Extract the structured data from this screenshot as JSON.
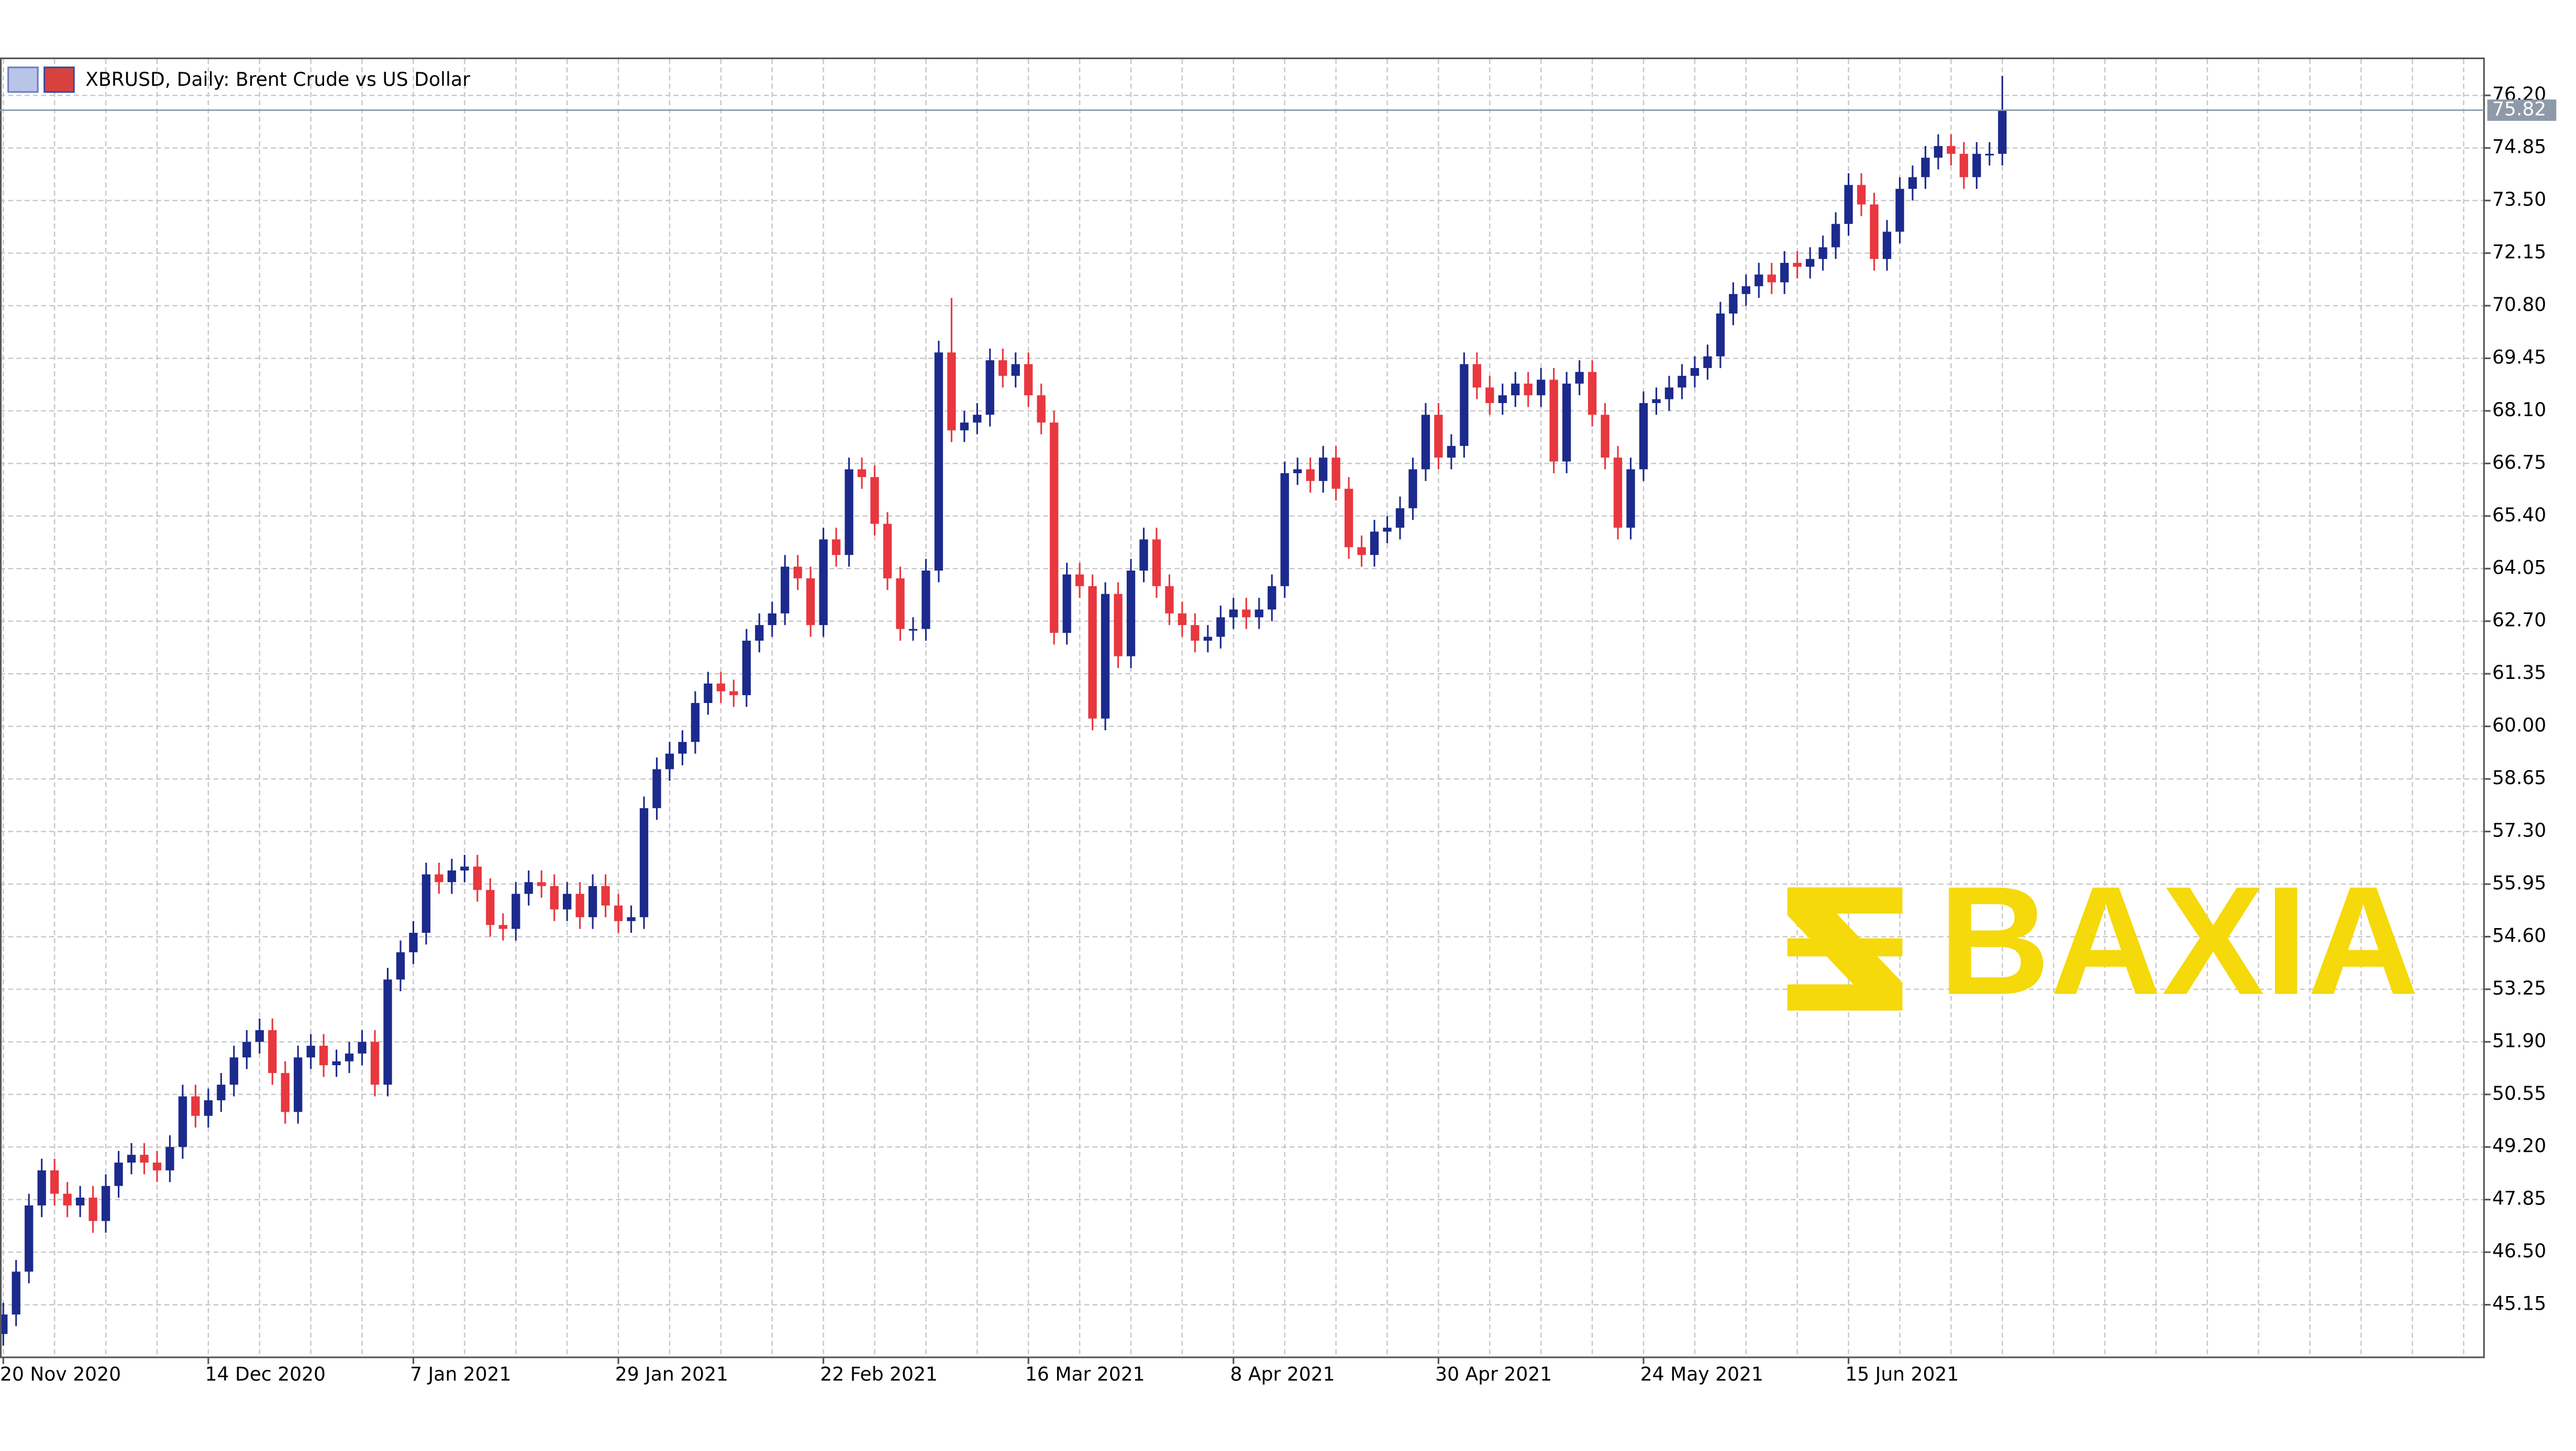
{
  "chart_data": {
    "type": "candlestick",
    "title": "XBRUSD, Daily:  Brent Crude vs US Dollar",
    "watermark": "BAXIA",
    "categories": [
      "20 Nov 2020",
      null,
      null,
      null,
      null,
      null,
      null,
      null,
      null,
      null,
      null,
      null,
      null,
      null,
      null,
      null,
      "14 Dec 2020",
      null,
      null,
      null,
      null,
      null,
      null,
      null,
      null,
      null,
      null,
      null,
      null,
      null,
      null,
      null,
      "7 Jan 2021",
      null,
      null,
      null,
      null,
      null,
      null,
      null,
      null,
      null,
      null,
      null,
      null,
      null,
      null,
      null,
      "29 Jan 2021",
      null,
      null,
      null,
      null,
      null,
      null,
      null,
      null,
      null,
      null,
      null,
      null,
      null,
      null,
      null,
      "22 Feb 2021",
      null,
      null,
      null,
      null,
      null,
      null,
      null,
      null,
      null,
      null,
      null,
      null,
      null,
      null,
      null,
      "16 Mar 2021",
      null,
      null,
      null,
      null,
      null,
      null,
      null,
      null,
      null,
      null,
      null,
      null,
      null,
      null,
      null,
      "8 Apr 2021",
      null,
      null,
      null,
      null,
      null,
      null,
      null,
      null,
      null,
      null,
      null,
      null,
      null,
      null,
      null,
      "30 Apr 2021",
      null,
      null,
      null,
      null,
      null,
      null,
      null,
      null,
      null,
      null,
      null,
      null,
      null,
      null,
      null,
      "24 May 2021",
      null,
      null,
      null,
      null,
      null,
      null,
      null,
      null,
      null,
      null,
      null,
      null,
      null,
      null,
      null,
      "15 Jun 2021",
      null,
      null,
      null,
      null,
      null,
      null,
      null,
      null,
      null,
      null,
      null,
      null
    ],
    "open": [
      44.4,
      44.9,
      46.0,
      47.7,
      48.6,
      48.0,
      47.7,
      47.9,
      47.3,
      48.2,
      48.8,
      49.0,
      48.8,
      48.6,
      49.2,
      50.5,
      50.0,
      50.4,
      50.8,
      51.5,
      51.9,
      52.2,
      51.1,
      50.1,
      51.5,
      51.8,
      51.3,
      51.4,
      51.6,
      51.9,
      50.8,
      53.5,
      54.2,
      54.7,
      56.2,
      56.0,
      56.3,
      56.4,
      55.8,
      54.9,
      54.8,
      55.7,
      56.0,
      55.9,
      55.3,
      55.7,
      55.1,
      55.9,
      55.4,
      55.0,
      55.1,
      57.9,
      58.9,
      59.3,
      59.6,
      60.6,
      61.1,
      60.9,
      60.8,
      62.2,
      62.6,
      62.9,
      64.1,
      63.8,
      62.6,
      64.8,
      64.4,
      66.6,
      66.4,
      65.2,
      63.8,
      62.5,
      62.5,
      64.0,
      69.6,
      67.6,
      67.8,
      68.0,
      69.4,
      69.0,
      69.3,
      68.5,
      67.8,
      62.4,
      63.9,
      63.6,
      60.2,
      63.4,
      61.8,
      64.0,
      64.8,
      63.6,
      62.9,
      62.6,
      62.2,
      62.3,
      62.8,
      63.0,
      62.8,
      63.0,
      63.6,
      66.5,
      66.6,
      66.3,
      66.9,
      66.1,
      64.6,
      64.4,
      65.0,
      65.1,
      65.6,
      66.6,
      68.0,
      66.9,
      67.2,
      69.3,
      68.7,
      68.3,
      68.5,
      68.8,
      68.5,
      68.9,
      66.8,
      68.8,
      69.1,
      68.0,
      66.9,
      65.1,
      66.6,
      68.3,
      68.4,
      68.7,
      69.0,
      69.2,
      69.5,
      70.6,
      71.1,
      71.3,
      71.6,
      71.4,
      71.9,
      71.8,
      72.0,
      72.3,
      72.9,
      73.9,
      73.4,
      72.0,
      72.7,
      73.8,
      74.1,
      74.6,
      74.9,
      74.7,
      74.1,
      74.7,
      74.7
    ],
    "high": [
      45.2,
      46.3,
      48.0,
      48.9,
      48.9,
      48.3,
      48.2,
      48.2,
      48.5,
      49.1,
      49.3,
      49.3,
      49.1,
      49.5,
      50.8,
      50.8,
      50.7,
      51.1,
      51.8,
      52.2,
      52.5,
      52.5,
      51.4,
      51.8,
      52.1,
      52.1,
      51.7,
      51.9,
      52.2,
      52.2,
      53.8,
      54.5,
      55.0,
      56.5,
      56.5,
      56.6,
      56.7,
      56.7,
      56.1,
      55.2,
      56.0,
      56.3,
      56.3,
      56.2,
      56.0,
      56.0,
      56.2,
      56.2,
      55.7,
      55.4,
      58.2,
      59.2,
      59.6,
      59.9,
      60.9,
      61.4,
      61.4,
      61.2,
      62.5,
      62.9,
      63.2,
      64.4,
      64.4,
      64.1,
      65.1,
      65.1,
      66.9,
      66.9,
      66.7,
      65.5,
      64.1,
      62.8,
      64.3,
      69.9,
      71.0,
      68.1,
      68.3,
      69.7,
      69.7,
      69.6,
      69.6,
      68.8,
      68.1,
      64.2,
      64.2,
      63.9,
      63.7,
      63.7,
      64.3,
      65.1,
      65.1,
      63.9,
      63.2,
      62.9,
      62.6,
      63.1,
      63.3,
      63.3,
      63.3,
      63.9,
      66.8,
      66.9,
      66.9,
      67.2,
      67.2,
      66.4,
      64.9,
      65.3,
      65.4,
      65.9,
      66.9,
      68.3,
      68.3,
      67.5,
      69.6,
      69.6,
      69.0,
      68.8,
      69.1,
      69.1,
      69.2,
      69.2,
      69.1,
      69.4,
      69.4,
      68.3,
      67.2,
      66.9,
      68.6,
      68.7,
      69.0,
      69.3,
      69.5,
      69.8,
      70.9,
      71.4,
      71.6,
      71.9,
      71.9,
      72.2,
      72.2,
      72.3,
      72.6,
      73.2,
      74.2,
      74.2,
      73.7,
      73.0,
      74.1,
      74.4,
      74.9,
      75.2,
      75.2,
      75.0,
      75.0,
      75.0,
      76.7
    ],
    "low": [
      44.1,
      44.6,
      45.7,
      47.4,
      47.7,
      47.4,
      47.4,
      47.0,
      47.0,
      47.9,
      48.5,
      48.5,
      48.3,
      48.3,
      48.9,
      49.7,
      49.7,
      50.1,
      50.5,
      51.2,
      51.6,
      50.8,
      49.8,
      49.8,
      51.2,
      51.0,
      51.0,
      51.1,
      51.3,
      50.5,
      50.5,
      53.2,
      53.9,
      54.4,
      55.7,
      55.7,
      56.0,
      55.5,
      54.6,
      54.5,
      54.5,
      55.4,
      55.6,
      55.0,
      55.0,
      54.8,
      54.8,
      55.1,
      54.7,
      54.7,
      54.8,
      57.6,
      58.6,
      59.0,
      59.3,
      60.3,
      60.6,
      60.5,
      60.5,
      61.9,
      62.3,
      62.6,
      63.5,
      62.3,
      62.3,
      64.1,
      64.1,
      66.1,
      64.9,
      63.5,
      62.2,
      62.2,
      62.2,
      63.7,
      67.3,
      67.3,
      67.5,
      67.7,
      68.7,
      68.7,
      68.2,
      67.5,
      62.1,
      62.1,
      63.3,
      59.9,
      59.9,
      61.5,
      61.5,
      63.7,
      63.3,
      62.6,
      62.3,
      61.9,
      61.9,
      62.0,
      62.5,
      62.5,
      62.5,
      62.7,
      63.3,
      66.2,
      66.0,
      66.0,
      65.8,
      64.3,
      64.1,
      64.1,
      64.7,
      64.8,
      65.3,
      66.3,
      66.6,
      66.6,
      66.9,
      68.4,
      68.0,
      68.0,
      68.2,
      68.2,
      68.2,
      66.5,
      66.5,
      68.5,
      67.7,
      66.6,
      64.8,
      64.8,
      66.3,
      68.0,
      68.1,
      68.4,
      68.7,
      68.9,
      69.2,
      70.3,
      70.8,
      71.0,
      71.1,
      71.1,
      71.5,
      71.5,
      71.7,
      72.0,
      72.6,
      73.1,
      71.7,
      71.7,
      72.4,
      73.5,
      73.8,
      74.3,
      74.4,
      73.8,
      73.8,
      74.4,
      74.4
    ],
    "close": [
      44.9,
      46.0,
      47.7,
      48.6,
      48.0,
      47.7,
      47.9,
      47.3,
      48.2,
      48.8,
      49.0,
      48.8,
      48.6,
      49.2,
      50.5,
      50.0,
      50.4,
      50.8,
      51.5,
      51.9,
      52.2,
      51.1,
      50.1,
      51.5,
      51.8,
      51.3,
      51.4,
      51.6,
      51.9,
      50.8,
      53.5,
      54.2,
      54.7,
      56.2,
      56.0,
      56.3,
      56.4,
      55.8,
      54.9,
      54.8,
      55.7,
      56.0,
      55.9,
      55.3,
      55.7,
      55.1,
      55.9,
      55.4,
      55.0,
      55.1,
      57.9,
      58.9,
      59.3,
      59.6,
      60.6,
      61.1,
      60.9,
      60.8,
      62.2,
      62.6,
      62.9,
      64.1,
      63.8,
      62.6,
      64.8,
      64.4,
      66.6,
      66.4,
      65.2,
      63.8,
      62.5,
      62.5,
      64.0,
      69.6,
      67.6,
      67.8,
      68.0,
      69.4,
      69.0,
      69.3,
      68.5,
      67.8,
      62.4,
      63.9,
      63.6,
      60.2,
      63.4,
      61.8,
      64.0,
      64.8,
      63.6,
      62.9,
      62.6,
      62.2,
      62.3,
      62.8,
      63.0,
      62.8,
      63.0,
      63.6,
      66.5,
      66.6,
      66.3,
      66.9,
      66.1,
      64.6,
      64.4,
      65.0,
      65.1,
      65.6,
      66.6,
      68.0,
      66.9,
      67.2,
      69.3,
      68.7,
      68.3,
      68.5,
      68.8,
      68.5,
      68.9,
      66.8,
      68.8,
      69.1,
      68.0,
      66.9,
      65.1,
      66.6,
      68.3,
      68.4,
      68.7,
      69.0,
      69.2,
      69.5,
      70.6,
      71.1,
      71.3,
      71.6,
      71.4,
      71.9,
      71.8,
      72.0,
      72.3,
      72.9,
      73.9,
      73.4,
      72.0,
      72.7,
      73.8,
      74.1,
      74.6,
      74.9,
      74.7,
      74.1,
      74.7,
      74.7,
      75.82
    ],
    "up_color": "#1c2a8c",
    "down_color": "#e8373f",
    "last_price": 75.82,
    "ylim": [
      43.8,
      77.13
    ],
    "yticks": [
      45.15,
      {
        "value": 46.5,
        "label": "46.50"
      },
      47.85,
      {
        "value": 49.2,
        "label": "49.20"
      },
      50.55,
      {
        "value": 51.9,
        "label": "51.90"
      },
      53.25,
      {
        "value": 54.6,
        "label": "54.60"
      },
      55.95,
      {
        "value": 57.3,
        "label": "57.30"
      },
      58.65,
      {
        "value": 60,
        "label": "60.00"
      },
      61.35,
      {
        "value": 62.7,
        "label": "62.70"
      },
      64.05,
      {
        "value": 65.4,
        "label": "65.40"
      },
      66.75,
      {
        "value": 68.1,
        "label": "68.10"
      },
      69.45,
      {
        "value": 70.8,
        "label": "70.80"
      },
      72.15,
      {
        "value": 73.5,
        "label": "73.50"
      },
      74.85,
      {
        "value": 76.2,
        "label": "76.20"
      }
    ],
    "grid": true
  }
}
